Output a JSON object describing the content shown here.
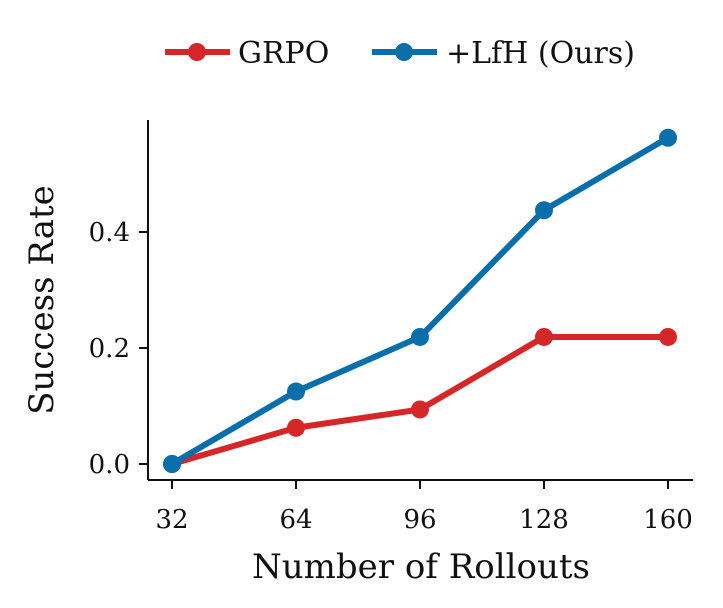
{
  "chart_data": {
    "type": "line",
    "x": [
      32,
      64,
      96,
      128,
      160
    ],
    "series": [
      {
        "name": "GRPO",
        "values": [
          0.0,
          0.0625,
          0.094,
          0.219,
          0.219
        ],
        "color": "#d62728"
      },
      {
        "name": "+LfH (Ours)",
        "values": [
          0.0,
          0.125,
          0.219,
          0.4375,
          0.5625
        ],
        "color": "#0a6eaa"
      }
    ],
    "xlabel": "Number of Rollouts",
    "ylabel": "Success Rate",
    "xticks": [
      "32",
      "64",
      "96",
      "128",
      "160"
    ],
    "yticks": [
      "0.0",
      "0.2",
      "0.4"
    ],
    "ytick_values": [
      0.0,
      0.2,
      0.4
    ],
    "ylim": [
      -0.03,
      0.59
    ],
    "xlim": [
      32,
      160
    ],
    "grid": false,
    "legend": "top"
  }
}
